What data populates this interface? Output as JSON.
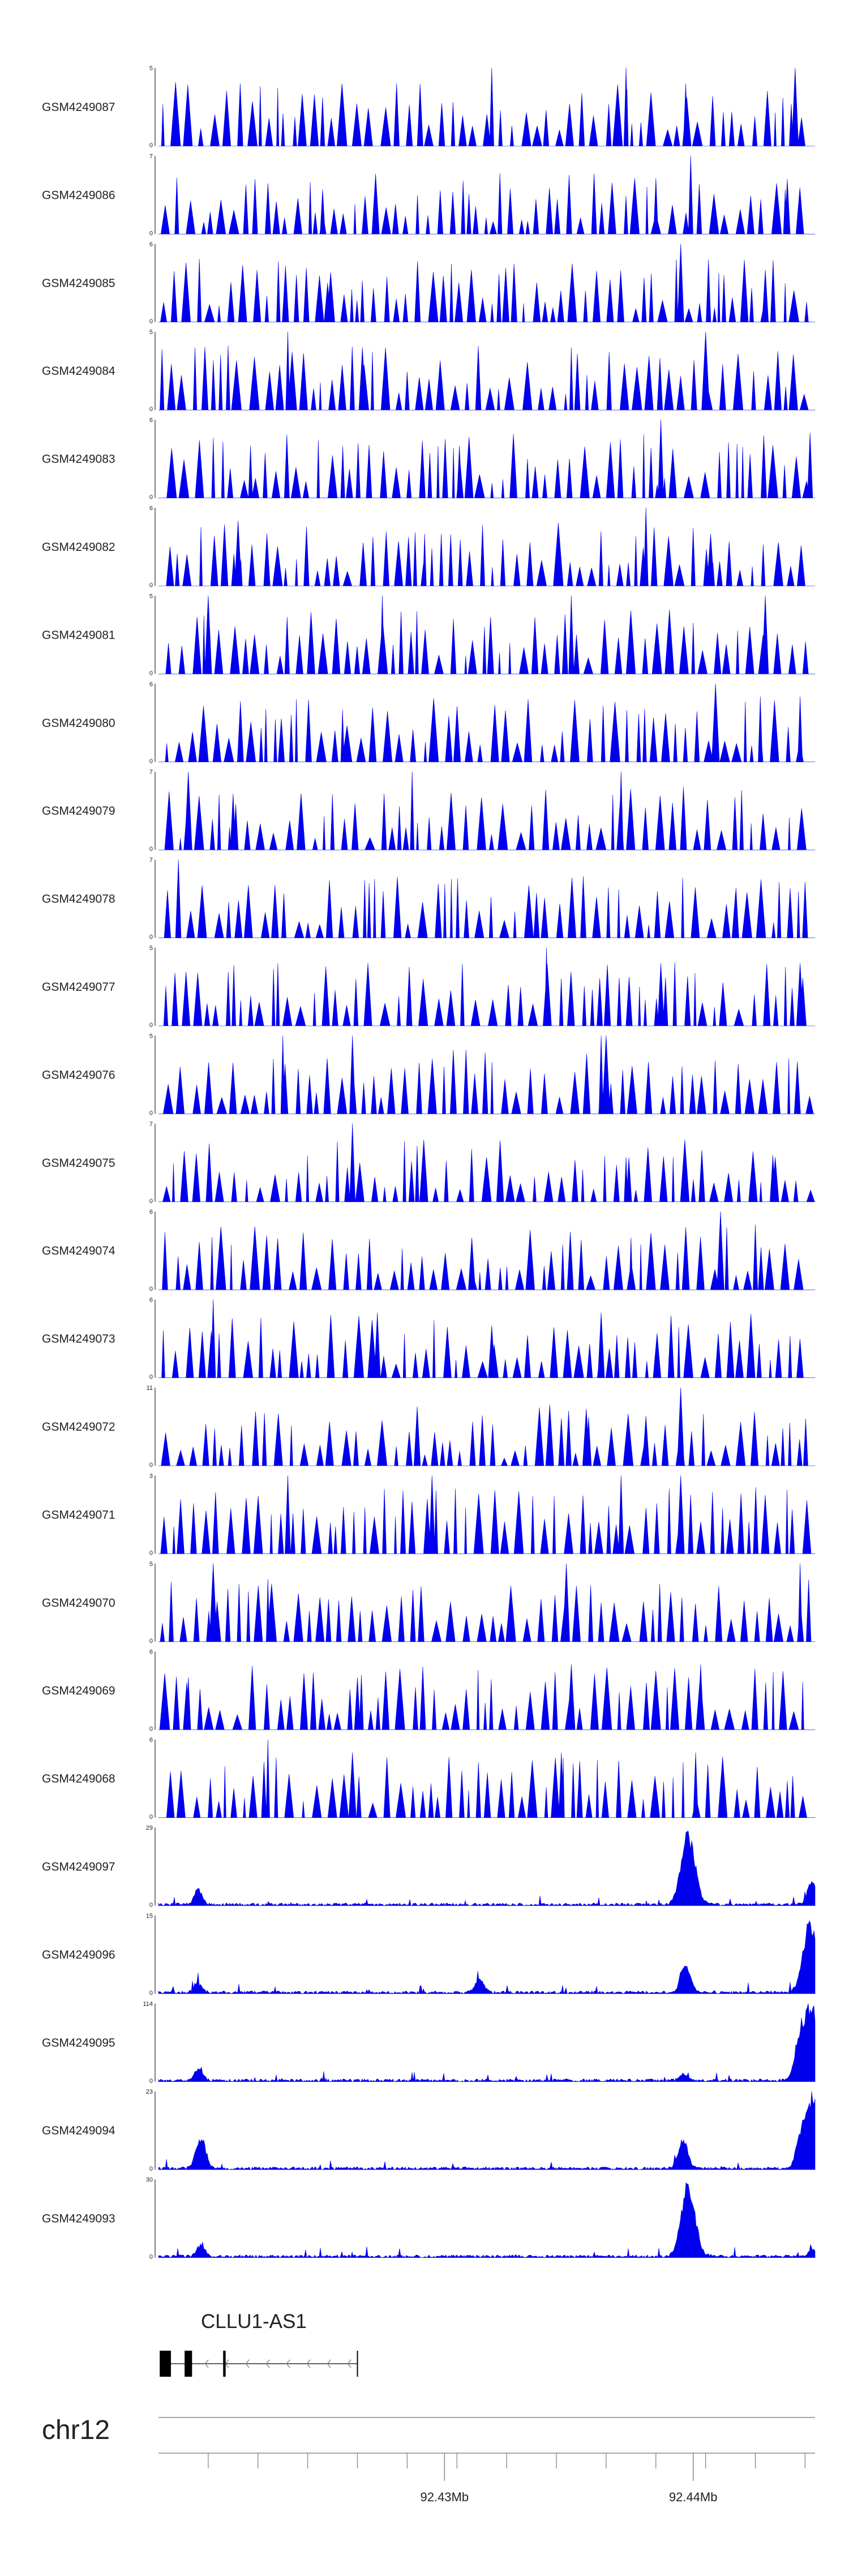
{
  "colors": {
    "track_fill": "#0000ee",
    "axis": "#000000",
    "label": "#222222",
    "ruler": "#888888"
  },
  "chart_data": {
    "type": "area",
    "title": "",
    "xlabel": "",
    "ylabel": "",
    "grid": false,
    "legend": "none",
    "xlim_mb": [
      92.4185,
      92.4449
    ],
    "tracks": [
      {
        "name": "GSM4249087",
        "ymax": 5,
        "style": "spiky",
        "seed": 87,
        "peaks": [
          [
            92.4319,
            5
          ],
          [
            92.4373,
            5
          ],
          [
            92.4397,
            4
          ],
          [
            92.4441,
            5
          ]
        ]
      },
      {
        "name": "GSM4249086",
        "ymax": 7,
        "style": "spiky",
        "seed": 86,
        "peaks": [
          [
            92.4251,
            4
          ],
          [
            92.4385,
            5
          ],
          [
            92.4399,
            7
          ],
          [
            92.4437,
            4
          ]
        ]
      },
      {
        "name": "GSM4249085",
        "ymax": 6,
        "style": "spiky",
        "seed": 85,
        "peaks": [
          [
            92.4253,
            3
          ],
          [
            92.4395,
            6
          ],
          [
            92.4421,
            3
          ],
          [
            92.4429,
            4
          ]
        ]
      },
      {
        "name": "GSM4249084",
        "ymax": 5,
        "style": "spiky",
        "seed": 84,
        "peaks": [
          [
            92.4237,
            5
          ],
          [
            92.4267,
            4
          ],
          [
            92.4351,
            4
          ],
          [
            92.4405,
            5
          ]
        ]
      },
      {
        "name": "GSM4249083",
        "ymax": 6,
        "style": "spiky",
        "seed": 83,
        "peaks": [
          [
            92.4222,
            4
          ],
          [
            92.4306,
            4
          ],
          [
            92.4387,
            6
          ],
          [
            92.4447,
            5
          ]
        ]
      },
      {
        "name": "GSM4249082",
        "ymax": 6,
        "style": "spiky",
        "seed": 82,
        "peaks": [
          [
            92.4217,
            5
          ],
          [
            92.4292,
            4
          ],
          [
            92.4381,
            6
          ],
          [
            92.4407,
            4
          ]
        ]
      },
      {
        "name": "GSM4249081",
        "ymax": 5,
        "style": "spiky",
        "seed": 81,
        "peaks": [
          [
            92.4205,
            5
          ],
          [
            92.4275,
            5
          ],
          [
            92.4351,
            5
          ],
          [
            92.4429,
            5
          ]
        ]
      },
      {
        "name": "GSM4249080",
        "ymax": 6,
        "style": "spiky",
        "seed": 80,
        "peaks": [
          [
            92.4259,
            4
          ],
          [
            92.4409,
            6
          ],
          [
            92.4427,
            5
          ],
          [
            92.4443,
            5
          ]
        ]
      },
      {
        "name": "GSM4249079",
        "ymax": 7,
        "style": "spiky",
        "seed": 79,
        "peaks": [
          [
            92.4197,
            7
          ],
          [
            92.4215,
            5
          ],
          [
            92.4287,
            7
          ],
          [
            92.4371,
            7
          ]
        ]
      },
      {
        "name": "GSM4249078",
        "ymax": 7,
        "style": "spiky",
        "seed": 78,
        "peaks": [
          [
            92.4193,
            7
          ],
          [
            92.4337,
            4
          ],
          [
            92.4417,
            4
          ],
          [
            92.4445,
            5
          ]
        ]
      },
      {
        "name": "GSM4249077",
        "ymax": 5,
        "style": "spiky",
        "seed": 77,
        "peaks": [
          [
            92.4233,
            4
          ],
          [
            92.4341,
            5
          ],
          [
            92.4387,
            4
          ],
          [
            92.4443,
            4
          ]
        ]
      },
      {
        "name": "GSM4249076",
        "ymax": 5,
        "style": "spiky",
        "seed": 76,
        "peaks": [
          [
            92.4235,
            5
          ],
          [
            92.4263,
            5
          ],
          [
            92.4363,
            5
          ],
          [
            92.4365,
            5
          ]
        ]
      },
      {
        "name": "GSM4249075",
        "ymax": 7,
        "style": "spiky",
        "seed": 75,
        "peaks": [
          [
            92.4263,
            7
          ],
          [
            92.4289,
            5
          ],
          [
            92.4373,
            4
          ],
          [
            92.4433,
            4
          ]
        ]
      },
      {
        "name": "GSM4249074",
        "ymax": 6,
        "style": "spiky",
        "seed": 74,
        "peaks": [
          [
            92.4311,
            4
          ],
          [
            92.4375,
            4
          ],
          [
            92.4411,
            6
          ],
          [
            92.4425,
            5
          ]
        ]
      },
      {
        "name": "GSM4249073",
        "ymax": 6,
        "style": "spiky",
        "seed": 73,
        "peaks": [
          [
            92.4207,
            6
          ],
          [
            92.4273,
            5
          ],
          [
            92.4319,
            4
          ],
          [
            92.4363,
            5
          ]
        ]
      },
      {
        "name": "GSM4249072",
        "ymax": 11,
        "style": "spiky",
        "seed": 72,
        "peaks": [
          [
            92.4357,
            8
          ],
          [
            92.4381,
            7
          ],
          [
            92.4395,
            11
          ],
          [
            92.4419,
            5
          ]
        ]
      },
      {
        "name": "GSM4249071",
        "ymax": 3,
        "style": "spiky",
        "seed": 71,
        "peaks": [
          [
            92.4237,
            3
          ],
          [
            92.4295,
            3
          ],
          [
            92.4371,
            3
          ],
          [
            92.4395,
            3
          ]
        ]
      },
      {
        "name": "GSM4249070",
        "ymax": 5,
        "style": "spiky",
        "seed": 70,
        "peaks": [
          [
            92.4207,
            5
          ],
          [
            92.4229,
            4
          ],
          [
            92.4349,
            5
          ],
          [
            92.4443,
            5
          ]
        ]
      },
      {
        "name": "GSM4249069",
        "ymax": 6,
        "style": "spiky",
        "seed": 69,
        "peaks": [
          [
            92.4197,
            4
          ],
          [
            92.4265,
            4
          ],
          [
            92.4351,
            5
          ],
          [
            92.4403,
            5
          ]
        ]
      },
      {
        "name": "GSM4249068",
        "ymax": 6,
        "style": "spiky",
        "seed": 68,
        "peaks": [
          [
            92.4229,
            6
          ],
          [
            92.4263,
            5
          ],
          [
            92.4347,
            5
          ],
          [
            92.4401,
            5
          ]
        ]
      },
      {
        "name": "GSM4249097",
        "ymax": 29,
        "style": "smooth",
        "seed": 97,
        "peaks": [
          [
            92.4201,
            6
          ],
          [
            92.4398,
            29
          ],
          [
            92.4448,
            10
          ]
        ]
      },
      {
        "name": "GSM4249096",
        "ymax": 15,
        "style": "smooth",
        "seed": 96,
        "peaks": [
          [
            92.4201,
            2
          ],
          [
            92.4314,
            3
          ],
          [
            92.4397,
            6
          ],
          [
            92.4447,
            15
          ]
        ]
      },
      {
        "name": "GSM4249095",
        "ymax": 114,
        "style": "smooth",
        "seed": 95,
        "peaks": [
          [
            92.4201,
            20
          ],
          [
            92.4396,
            10
          ],
          [
            92.4443,
            65
          ],
          [
            92.4448,
            114
          ]
        ]
      },
      {
        "name": "GSM4249094",
        "ymax": 23,
        "style": "smooth",
        "seed": 94,
        "peaks": [
          [
            92.4202,
            10
          ],
          [
            92.4396,
            9
          ],
          [
            92.4443,
            8
          ],
          [
            92.4448,
            23
          ]
        ]
      },
      {
        "name": "GSM4249093",
        "ymax": 30,
        "style": "smooth",
        "seed": 93,
        "peaks": [
          [
            92.4202,
            5
          ],
          [
            92.4398,
            30
          ],
          [
            92.4448,
            3
          ]
        ]
      }
    ],
    "gene": {
      "name": "CLLU1-AS1",
      "start_mb": 92.41855,
      "end_mb": 92.4265,
      "strand": "-",
      "exons": [
        [
          92.41855,
          92.419
        ],
        [
          92.41955,
          92.41985
        ],
        [
          92.4211,
          92.4212
        ]
      ]
    },
    "chromosome": "chr12",
    "ruler": {
      "minor_ticks_mb": [
        92.4205,
        92.4225,
        92.4245,
        92.4265,
        92.4285,
        92.4305,
        92.4325,
        92.4345,
        92.4365,
        92.4385,
        92.4405,
        92.4425,
        92.4445
      ],
      "major_ticks_mb": [
        92.43,
        92.44
      ],
      "major_tick_labels": [
        "92.43Mb",
        "92.44Mb"
      ]
    }
  }
}
